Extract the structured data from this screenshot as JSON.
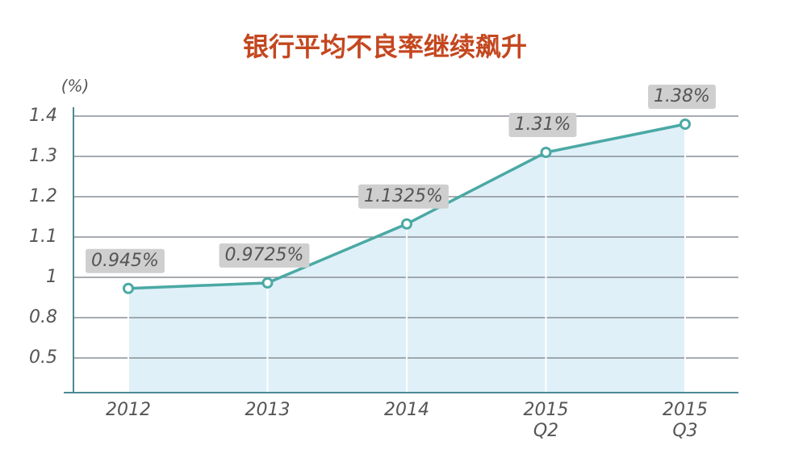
{
  "chart_data": {
    "type": "line",
    "title": "银行平均不良率继续飙升",
    "y_label": "(%)",
    "categories": [
      "2012",
      "2013",
      "2014",
      "2015\nQ2",
      "2015\nQ3"
    ],
    "values": [
      0.945,
      0.9725,
      1.1325,
      1.31,
      1.38
    ],
    "value_labels": [
      "0.945%",
      "0.9725%",
      "1.1325%",
      "1.31%",
      "1.38%"
    ],
    "color": "#4aa9a4",
    "area_color": "#dff0f9",
    "yticks": [
      0.5,
      0.8,
      1,
      1.1,
      1.2,
      1.3,
      1.4
    ],
    "grid": true
  }
}
